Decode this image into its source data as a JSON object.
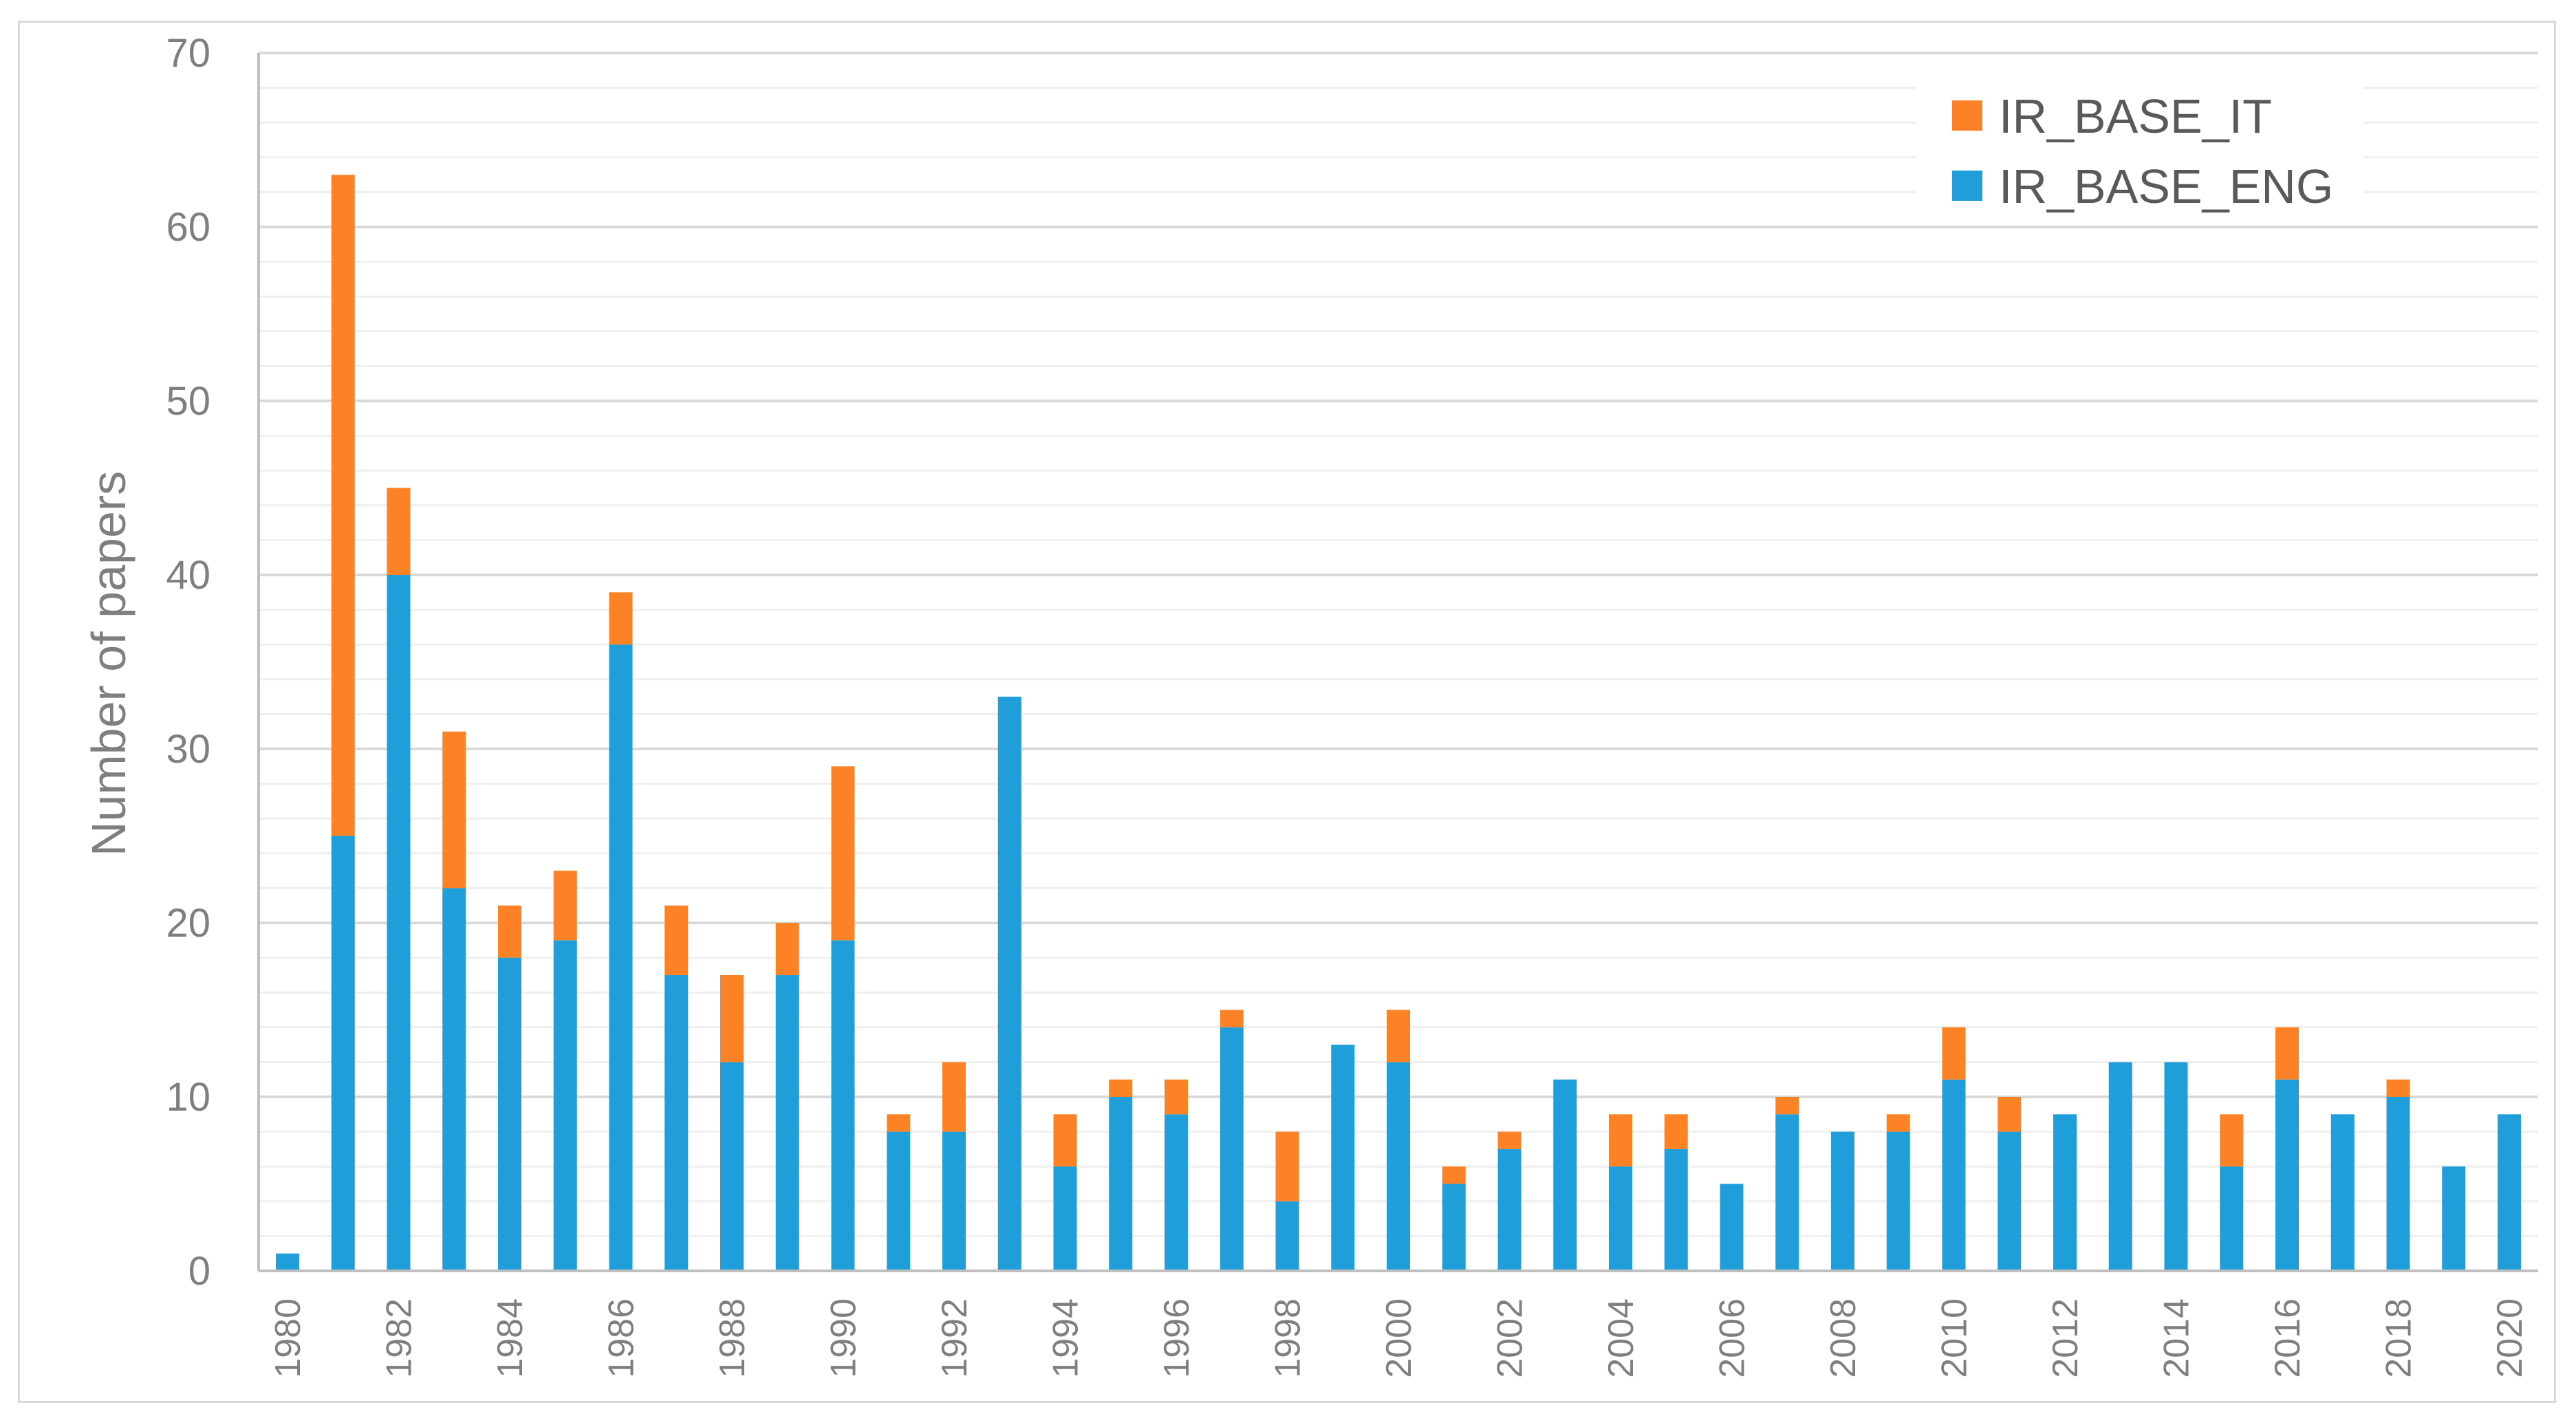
{
  "chart_data": {
    "type": "bar",
    "stacked": true,
    "title": "",
    "xlabel": "",
    "ylabel": "Number of papers",
    "ylim": [
      0,
      70
    ],
    "y_major_ticks": [
      0,
      10,
      20,
      30,
      40,
      50,
      60,
      70
    ],
    "y_minor_step": 2,
    "grid": true,
    "legend_position": "top-right",
    "categories": [
      "1980",
      "1981",
      "1982",
      "1983",
      "1984",
      "1985",
      "1986",
      "1987",
      "1988",
      "1989",
      "1990",
      "1991",
      "1992",
      "1993",
      "1994",
      "1995",
      "1996",
      "1997",
      "1998",
      "1999",
      "2000",
      "2001",
      "2002",
      "2003",
      "2004",
      "2005",
      "2006",
      "2007",
      "2008",
      "2009",
      "2010",
      "2011",
      "2012",
      "2013",
      "2014",
      "2015",
      "2016",
      "2017",
      "2018",
      "2019",
      "2020"
    ],
    "x_tick_labels": [
      "1980",
      "1982",
      "1984",
      "1986",
      "1988",
      "1990",
      "1992",
      "1994",
      "1996",
      "1998",
      "2000",
      "2002",
      "2004",
      "2006",
      "2008",
      "2010",
      "2012",
      "2014",
      "2016",
      "2018",
      "2020"
    ],
    "series": [
      {
        "name": "IR_BASE_ENG",
        "color": "#1f9ed9",
        "values": [
          1,
          25,
          40,
          22,
          18,
          19,
          36,
          17,
          12,
          17,
          19,
          8,
          8,
          33,
          6,
          10,
          9,
          14,
          4,
          13,
          12,
          5,
          7,
          11,
          6,
          7,
          5,
          9,
          8,
          8,
          11,
          8,
          9,
          12,
          12,
          6,
          11,
          9,
          10,
          6,
          9
        ]
      },
      {
        "name": "IR_BASE_IT",
        "color": "#fd8226",
        "values": [
          0,
          38,
          5,
          9,
          3,
          4,
          3,
          4,
          5,
          3,
          10,
          1,
          4,
          0,
          3,
          1,
          2,
          1,
          4,
          0,
          3,
          1,
          1,
          0,
          3,
          2,
          0,
          1,
          0,
          1,
          3,
          2,
          0,
          0,
          0,
          3,
          3,
          0,
          1,
          0,
          0
        ]
      }
    ],
    "legend": [
      {
        "name": "IR_BASE_IT",
        "color": "#fd8226"
      },
      {
        "name": "IR_BASE_ENG",
        "color": "#1f9ed9"
      }
    ]
  }
}
